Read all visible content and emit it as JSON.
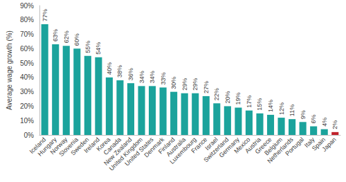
{
  "chart_data": {
    "type": "bar",
    "y_label": "Average wage growth (%)",
    "categories": [
      "Iceland",
      "Hungary",
      "Norway",
      "Slovenia",
      "Sweden",
      "Ireland",
      "Korea",
      "Canada",
      "New Zealand",
      "United Kingdom",
      "United States",
      "Denmark",
      "Finland",
      "Australia",
      "Luxembourg",
      "France",
      "Israel",
      "Switzerland",
      "Germany",
      "Mexico",
      "Austria",
      "Greece",
      "Belgium",
      "Netherlands",
      "Portugal",
      "Italy",
      "Spain",
      "Japan"
    ],
    "values": [
      77,
      63,
      62,
      60,
      55,
      54,
      40,
      38,
      36,
      34,
      34,
      33,
      30,
      29,
      29,
      27,
      22,
      20,
      19,
      17,
      15,
      14,
      12,
      11,
      9,
      6,
      4,
      2
    ],
    "value_labels": [
      "77%",
      "63%",
      "62%",
      "60%",
      "55%",
      "54%",
      "40%",
      "38%",
      "36%",
      "34%",
      "34%",
      "33%",
      "30%",
      "29%",
      "29%",
      "27%",
      "22%",
      "20%",
      "19%",
      "17%",
      "15%",
      "14%",
      "12%",
      "11%",
      "9%",
      "6%",
      "4%",
      "2%"
    ],
    "colors": [
      "#1ba39c",
      "#1ba39c",
      "#1ba39c",
      "#1ba39c",
      "#1ba39c",
      "#1ba39c",
      "#1ba39c",
      "#1ba39c",
      "#1ba39c",
      "#1ba39c",
      "#1ba39c",
      "#1ba39c",
      "#1ba39c",
      "#1ba39c",
      "#1ba39c",
      "#1ba39c",
      "#1ba39c",
      "#1ba39c",
      "#1ba39c",
      "#1ba39c",
      "#1ba39c",
      "#1ba39c",
      "#1ba39c",
      "#1ba39c",
      "#1ba39c",
      "#1ba39c",
      "#1ba39c",
      "#c0232c"
    ],
    "ylim": [
      0,
      90
    ],
    "yticks": [
      {
        "value": 0,
        "label": "0%"
      },
      {
        "value": 10,
        "label": "10%"
      },
      {
        "value": 20,
        "label": "20%"
      },
      {
        "value": 30,
        "label": "30%"
      },
      {
        "value": 40,
        "label": "40%"
      },
      {
        "value": 50,
        "label": "50%"
      },
      {
        "value": 60,
        "label": "60%"
      },
      {
        "value": 70,
        "label": "70%"
      },
      {
        "value": 80,
        "label": "80%"
      },
      {
        "value": 90,
        "label": "90%"
      }
    ],
    "grid": false,
    "data_labels": true
  }
}
